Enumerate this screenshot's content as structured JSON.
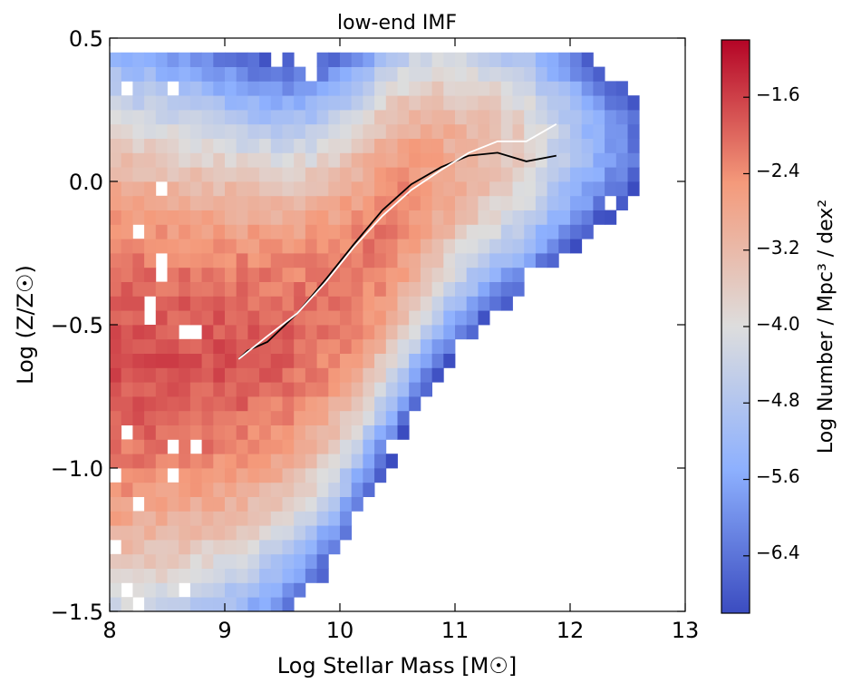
{
  "chart_data": {
    "type": "heatmap",
    "title": "low-end IMF",
    "xlabel": "Log Stellar Mass [M☉]",
    "ylabel": "Log (Z/Z☉)",
    "xlim": [
      8,
      13
    ],
    "ylim": [
      -1.5,
      0.5
    ],
    "xticks": [
      "8",
      "9",
      "10",
      "11",
      "12",
      "13"
    ],
    "xtick_values": [
      8,
      9,
      10,
      11,
      12,
      13
    ],
    "yticks": [
      "−1.5",
      "−1.0",
      "−0.5",
      "0.0",
      "0.5"
    ],
    "ytick_values": [
      -1.5,
      -1.0,
      -0.5,
      0.0,
      0.5
    ],
    "colorbar": {
      "label": "Log Number / Mpc³ / dex²",
      "range": [
        -7.0,
        -1.0
      ],
      "ticks": [
        "−1.6",
        "−2.4",
        "−3.2",
        "−4.0",
        "−4.8",
        "−5.6",
        "−6.4"
      ],
      "tick_values": [
        -1.6,
        -2.4,
        -3.2,
        -4.0,
        -4.8,
        -5.6,
        -6.4
      ]
    },
    "bins": {
      "x_width": 0.1,
      "y_width": 0.05
    },
    "colormap": [
      "#3b4cc0",
      "#dddddd",
      "#b40426"
    ],
    "series": [
      {
        "name": "black median line",
        "color": "#000000",
        "x": [
          9.12,
          9.2,
          9.37,
          9.63,
          9.88,
          10.12,
          10.37,
          10.62,
          10.88,
          11.12,
          11.37,
          11.62,
          11.88
        ],
        "y": [
          -0.62,
          -0.59,
          -0.56,
          -0.46,
          -0.34,
          -0.22,
          -0.1,
          -0.01,
          0.05,
          0.09,
          0.1,
          0.07,
          0.09
        ]
      },
      {
        "name": "white median line",
        "color": "#ffffff",
        "x": [
          9.12,
          9.37,
          9.63,
          9.88,
          10.12,
          10.37,
          10.62,
          10.88,
          11.12,
          11.37,
          11.62,
          11.88
        ],
        "y": [
          -0.62,
          -0.54,
          -0.46,
          -0.35,
          -0.23,
          -0.12,
          -0.03,
          0.04,
          0.1,
          0.14,
          0.14,
          0.2
        ]
      }
    ]
  }
}
